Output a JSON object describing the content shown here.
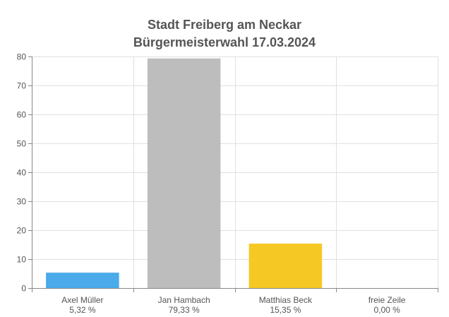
{
  "chart_data": {
    "type": "bar",
    "title": [
      "Stadt Freiberg am Neckar",
      "Bürgermeisterwahl 17.03.2024"
    ],
    "categories": [
      "Axel Müller",
      "Jan Hambach",
      "Matthias Beck",
      "freie Zeile"
    ],
    "percent_labels": [
      "5,32 %",
      "79,33 %",
      "15,35 %",
      "0,00 %"
    ],
    "values": [
      5.32,
      79.33,
      15.35,
      0.0
    ],
    "colors": [
      "#4aaaea",
      "#bdbdbd",
      "#f5c824",
      "#cccccc"
    ],
    "ylim": [
      0,
      80
    ],
    "yticks": [
      0,
      10,
      20,
      30,
      40,
      50,
      60,
      70,
      80
    ],
    "xlabel": "",
    "ylabel": "",
    "grid": true,
    "legend": "none"
  }
}
